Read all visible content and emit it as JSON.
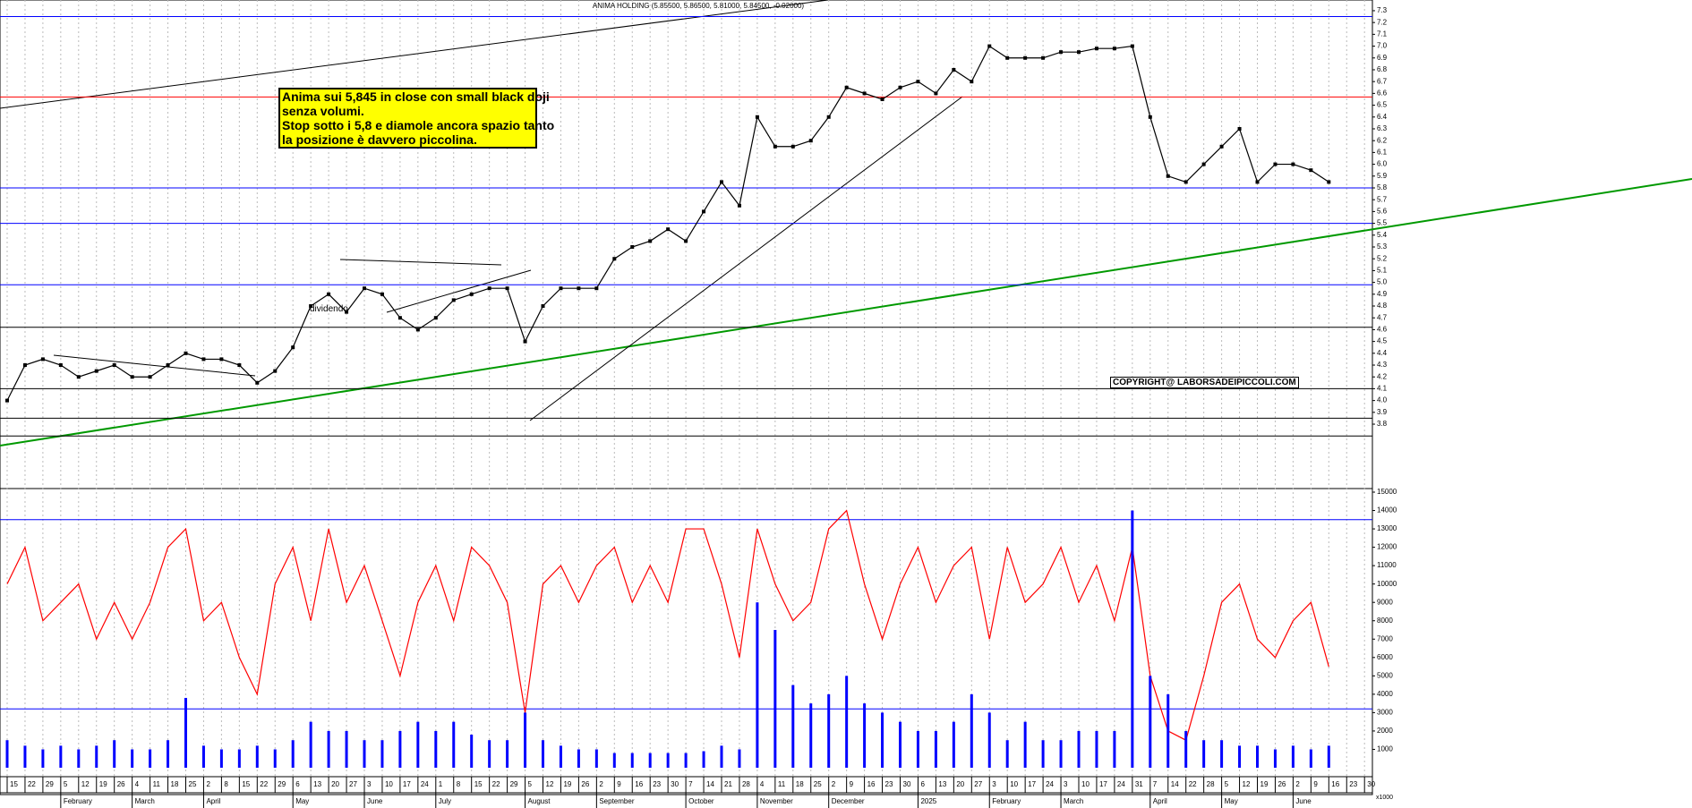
{
  "chart_data": [
    {
      "type": "line",
      "title": "ANIMA HOLDING (5.85500, 5.86500, 5.81000, 5.84500, -0.02000)",
      "annotations": [
        "Anima sui 5,845 in close con small black doji",
        "senza volumi.",
        "Stop sotto i 5,8 e diamole ancora spazio tanto",
        "la posizione è davvero piccolina."
      ],
      "copyright": "COPYRIGHT@ LABORSADEIPICCOLI.COM",
      "event_label": "dividendo",
      "categories": [
        "15",
        "22",
        "29",
        "5",
        "12",
        "19",
        "26",
        "4",
        "11",
        "18",
        "25",
        "2",
        "8",
        "15",
        "22",
        "29",
        "6",
        "13",
        "20",
        "27",
        "3",
        "10",
        "17",
        "24",
        "1",
        "8",
        "15",
        "22",
        "29",
        "5",
        "12",
        "19",
        "26",
        "2",
        "9",
        "16",
        "23",
        "30",
        "7",
        "14",
        "21",
        "28",
        "4",
        "11",
        "18",
        "25",
        "2",
        "9",
        "16",
        "23",
        "30",
        "6",
        "13",
        "20",
        "27",
        "3",
        "10",
        "17",
        "24",
        "3",
        "10",
        "17",
        "24",
        "31",
        "7",
        "14",
        "22",
        "28",
        "5",
        "12",
        "19",
        "26",
        "2",
        "9",
        "16",
        "23",
        "30"
      ],
      "month_labels": [
        null,
        null,
        null,
        "February",
        null,
        null,
        null,
        "March",
        null,
        null,
        null,
        "April",
        null,
        null,
        null,
        null,
        "May",
        null,
        null,
        null,
        "June",
        null,
        null,
        null,
        "July",
        null,
        null,
        null,
        null,
        "August",
        null,
        null,
        null,
        "September",
        null,
        null,
        null,
        null,
        "October",
        null,
        null,
        null,
        "November",
        null,
        null,
        null,
        "December",
        null,
        null,
        null,
        null,
        "2025",
        null,
        null,
        null,
        "February",
        null,
        null,
        null,
        "March",
        null,
        null,
        null,
        null,
        "April",
        null,
        null,
        null,
        "May",
        null,
        null,
        null,
        "June",
        null,
        null,
        null,
        null
      ],
      "series": [
        {
          "color": "#000000",
          "values": [
            4.0,
            4.3,
            4.35,
            4.3,
            4.2,
            4.25,
            4.3,
            4.2,
            4.2,
            4.3,
            4.4,
            4.35,
            4.35,
            4.3,
            4.15,
            4.25,
            4.45,
            4.8,
            4.9,
            4.75,
            4.95,
            4.9,
            4.7,
            4.6,
            4.7,
            4.85,
            4.9,
            4.95,
            4.95,
            4.5,
            4.8,
            4.95,
            4.95,
            4.95,
            5.2,
            5.3,
            5.35,
            5.45,
            5.35,
            5.6,
            5.85,
            5.65,
            6.4,
            6.15,
            6.15,
            6.2,
            6.4,
            6.65,
            6.6,
            6.55,
            6.65,
            6.7,
            6.6,
            6.8,
            6.7,
            7.0,
            6.9,
            6.9,
            6.9,
            6.95,
            6.95,
            6.98,
            6.98,
            7.0,
            6.4,
            5.9,
            5.85,
            6.0,
            6.15,
            6.3,
            5.85,
            6.0,
            6.0,
            5.95,
            5.85,
            null,
            null
          ]
        }
      ],
      "ylim": [
        3.27,
        7.33
      ],
      "yticks": [
        3.8,
        3.9,
        {
          "value": 4,
          "label": "4.0"
        },
        4.1,
        4.2,
        4.3,
        4.4,
        4.5,
        4.6,
        4.7,
        4.8,
        4.9,
        {
          "value": 5,
          "label": "5.0"
        },
        5.1,
        5.2,
        5.3,
        5.4,
        5.5,
        5.6,
        5.7,
        5.8,
        5.9,
        {
          "value": 6,
          "label": "6.0"
        },
        6.1,
        6.2,
        6.3,
        6.4,
        6.5,
        6.6,
        6.7,
        6.8,
        6.9,
        {
          "value": 7,
          "label": "7.0"
        },
        7.1,
        7.2,
        7.3
      ],
      "hlines": [
        {
          "value": 7.25,
          "color": "#0000ff"
        },
        {
          "value": 6.57,
          "color": "#ff0000"
        },
        {
          "value": 5.8,
          "color": "#0000ff"
        },
        {
          "value": 5.5,
          "color": "#0000ff"
        },
        {
          "value": 4.98,
          "color": "#0000ff"
        },
        {
          "value": 4.62,
          "color": "#000000"
        },
        {
          "value": 4.1,
          "color": "#000000"
        },
        {
          "value": 3.85,
          "color": "#000000"
        },
        {
          "value": 3.7,
          "color": "#000000"
        }
      ],
      "grid": true
    },
    {
      "type": "combo",
      "y_unit": "x1000",
      "series": [
        {
          "kind": "line",
          "color": "#ff0000",
          "values": [
            10000,
            12000,
            8000,
            9000,
            10000,
            7000,
            9000,
            7000,
            9000,
            12000,
            13000,
            8000,
            9000,
            6000,
            4000,
            10000,
            12000,
            8000,
            13000,
            9000,
            11000,
            8000,
            5000,
            9000,
            11000,
            8000,
            12000,
            11000,
            9000,
            3000,
            10000,
            11000,
            9000,
            11000,
            12000,
            9000,
            11000,
            9000,
            13000,
            13000,
            10000,
            6000,
            13000,
            10000,
            8000,
            9000,
            13000,
            14000,
            10000,
            7000,
            10000,
            12000,
            9000,
            11000,
            12000,
            7000,
            12000,
            9000,
            10000,
            12000,
            9000,
            11000,
            8000,
            12000,
            5000,
            2000,
            1500,
            5000,
            9000,
            10000,
            7000,
            6000,
            8000,
            9000,
            5500,
            null,
            null
          ]
        },
        {
          "kind": "bar",
          "color": "#0000ff",
          "values": [
            1500,
            1200,
            1000,
            1200,
            1000,
            1200,
            1500,
            1000,
            1000,
            1500,
            3800,
            1200,
            1000,
            1000,
            1200,
            1000,
            1500,
            2500,
            2000,
            2000,
            1500,
            1500,
            2000,
            2500,
            2000,
            2500,
            1800,
            1500,
            1500,
            3000,
            1500,
            1200,
            1000,
            1000,
            800,
            800,
            800,
            800,
            800,
            900,
            1200,
            1000,
            9000,
            7500,
            4500,
            3500,
            4000,
            5000,
            3500,
            3000,
            2500,
            2000,
            2000,
            2500,
            4000,
            3000,
            1500,
            2500,
            1500,
            1500,
            2000,
            2000,
            2000,
            14000,
            5000,
            4000,
            2000,
            1500,
            1500,
            1200,
            1200,
            1000,
            1200,
            1000,
            1200,
            null,
            null
          ]
        }
      ],
      "ylim": [
        0,
        15000
      ],
      "yticks": [
        1000,
        2000,
        3000,
        4000,
        5000,
        6000,
        7000,
        8000,
        9000,
        10000,
        11000,
        12000,
        13000,
        14000,
        15000
      ],
      "hlines": [
        {
          "value": 13500,
          "color": "#0000ff"
        },
        {
          "value": 3200,
          "color": "#0000ff"
        }
      ]
    }
  ]
}
